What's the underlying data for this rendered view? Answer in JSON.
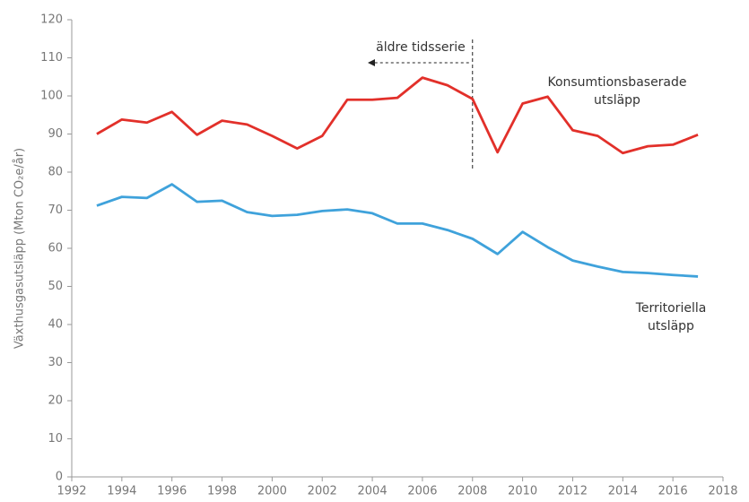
{
  "chart_data": {
    "type": "line",
    "y_label": "Växthusgasutsläpp  (Mton CO₂e/år)",
    "x": [
      1993,
      1994,
      1995,
      1996,
      1997,
      1998,
      1999,
      2000,
      2001,
      2002,
      2003,
      2004,
      2005,
      2006,
      2007,
      2008,
      2009,
      2010,
      2011,
      2012,
      2013,
      2014,
      2015,
      2016,
      2017
    ],
    "series": [
      {
        "name": "Konsumtionsbaserade utsläpp",
        "color": "#e2302a",
        "values": [
          90,
          93.8,
          93,
          95.8,
          89.8,
          93.5,
          92.5,
          89.5,
          86.2,
          89.5,
          99,
          99,
          99.5,
          104.8,
          102.8,
          99.2,
          85.2,
          98,
          99.8,
          91,
          89.5,
          85,
          86.8,
          87.2,
          89.8
        ]
      },
      {
        "name": "Territoriella utsläpp",
        "color": "#3fa2db",
        "values": [
          71.2,
          73.5,
          73.2,
          76.8,
          72.2,
          72.5,
          69.5,
          68.5,
          68.8,
          69.8,
          70.2,
          69.2,
          66.5,
          66.5,
          64.8,
          62.5,
          58.5,
          64.3,
          60.3,
          56.8,
          55.2,
          53.8,
          53.5,
          53,
          52.6
        ]
      }
    ],
    "annotation": {
      "text": "äldre tidsserie",
      "x": 2008
    },
    "xlim": [
      1992,
      2018
    ],
    "xticks": [
      1992,
      1994,
      1996,
      1998,
      2000,
      2002,
      2004,
      2006,
      2008,
      2010,
      2012,
      2014,
      2016,
      2018
    ],
    "ylim": [
      0,
      120
    ],
    "yticks": [
      0,
      10,
      20,
      30,
      40,
      50,
      60,
      70,
      80,
      90,
      100,
      110,
      120
    ],
    "grid": false
  }
}
